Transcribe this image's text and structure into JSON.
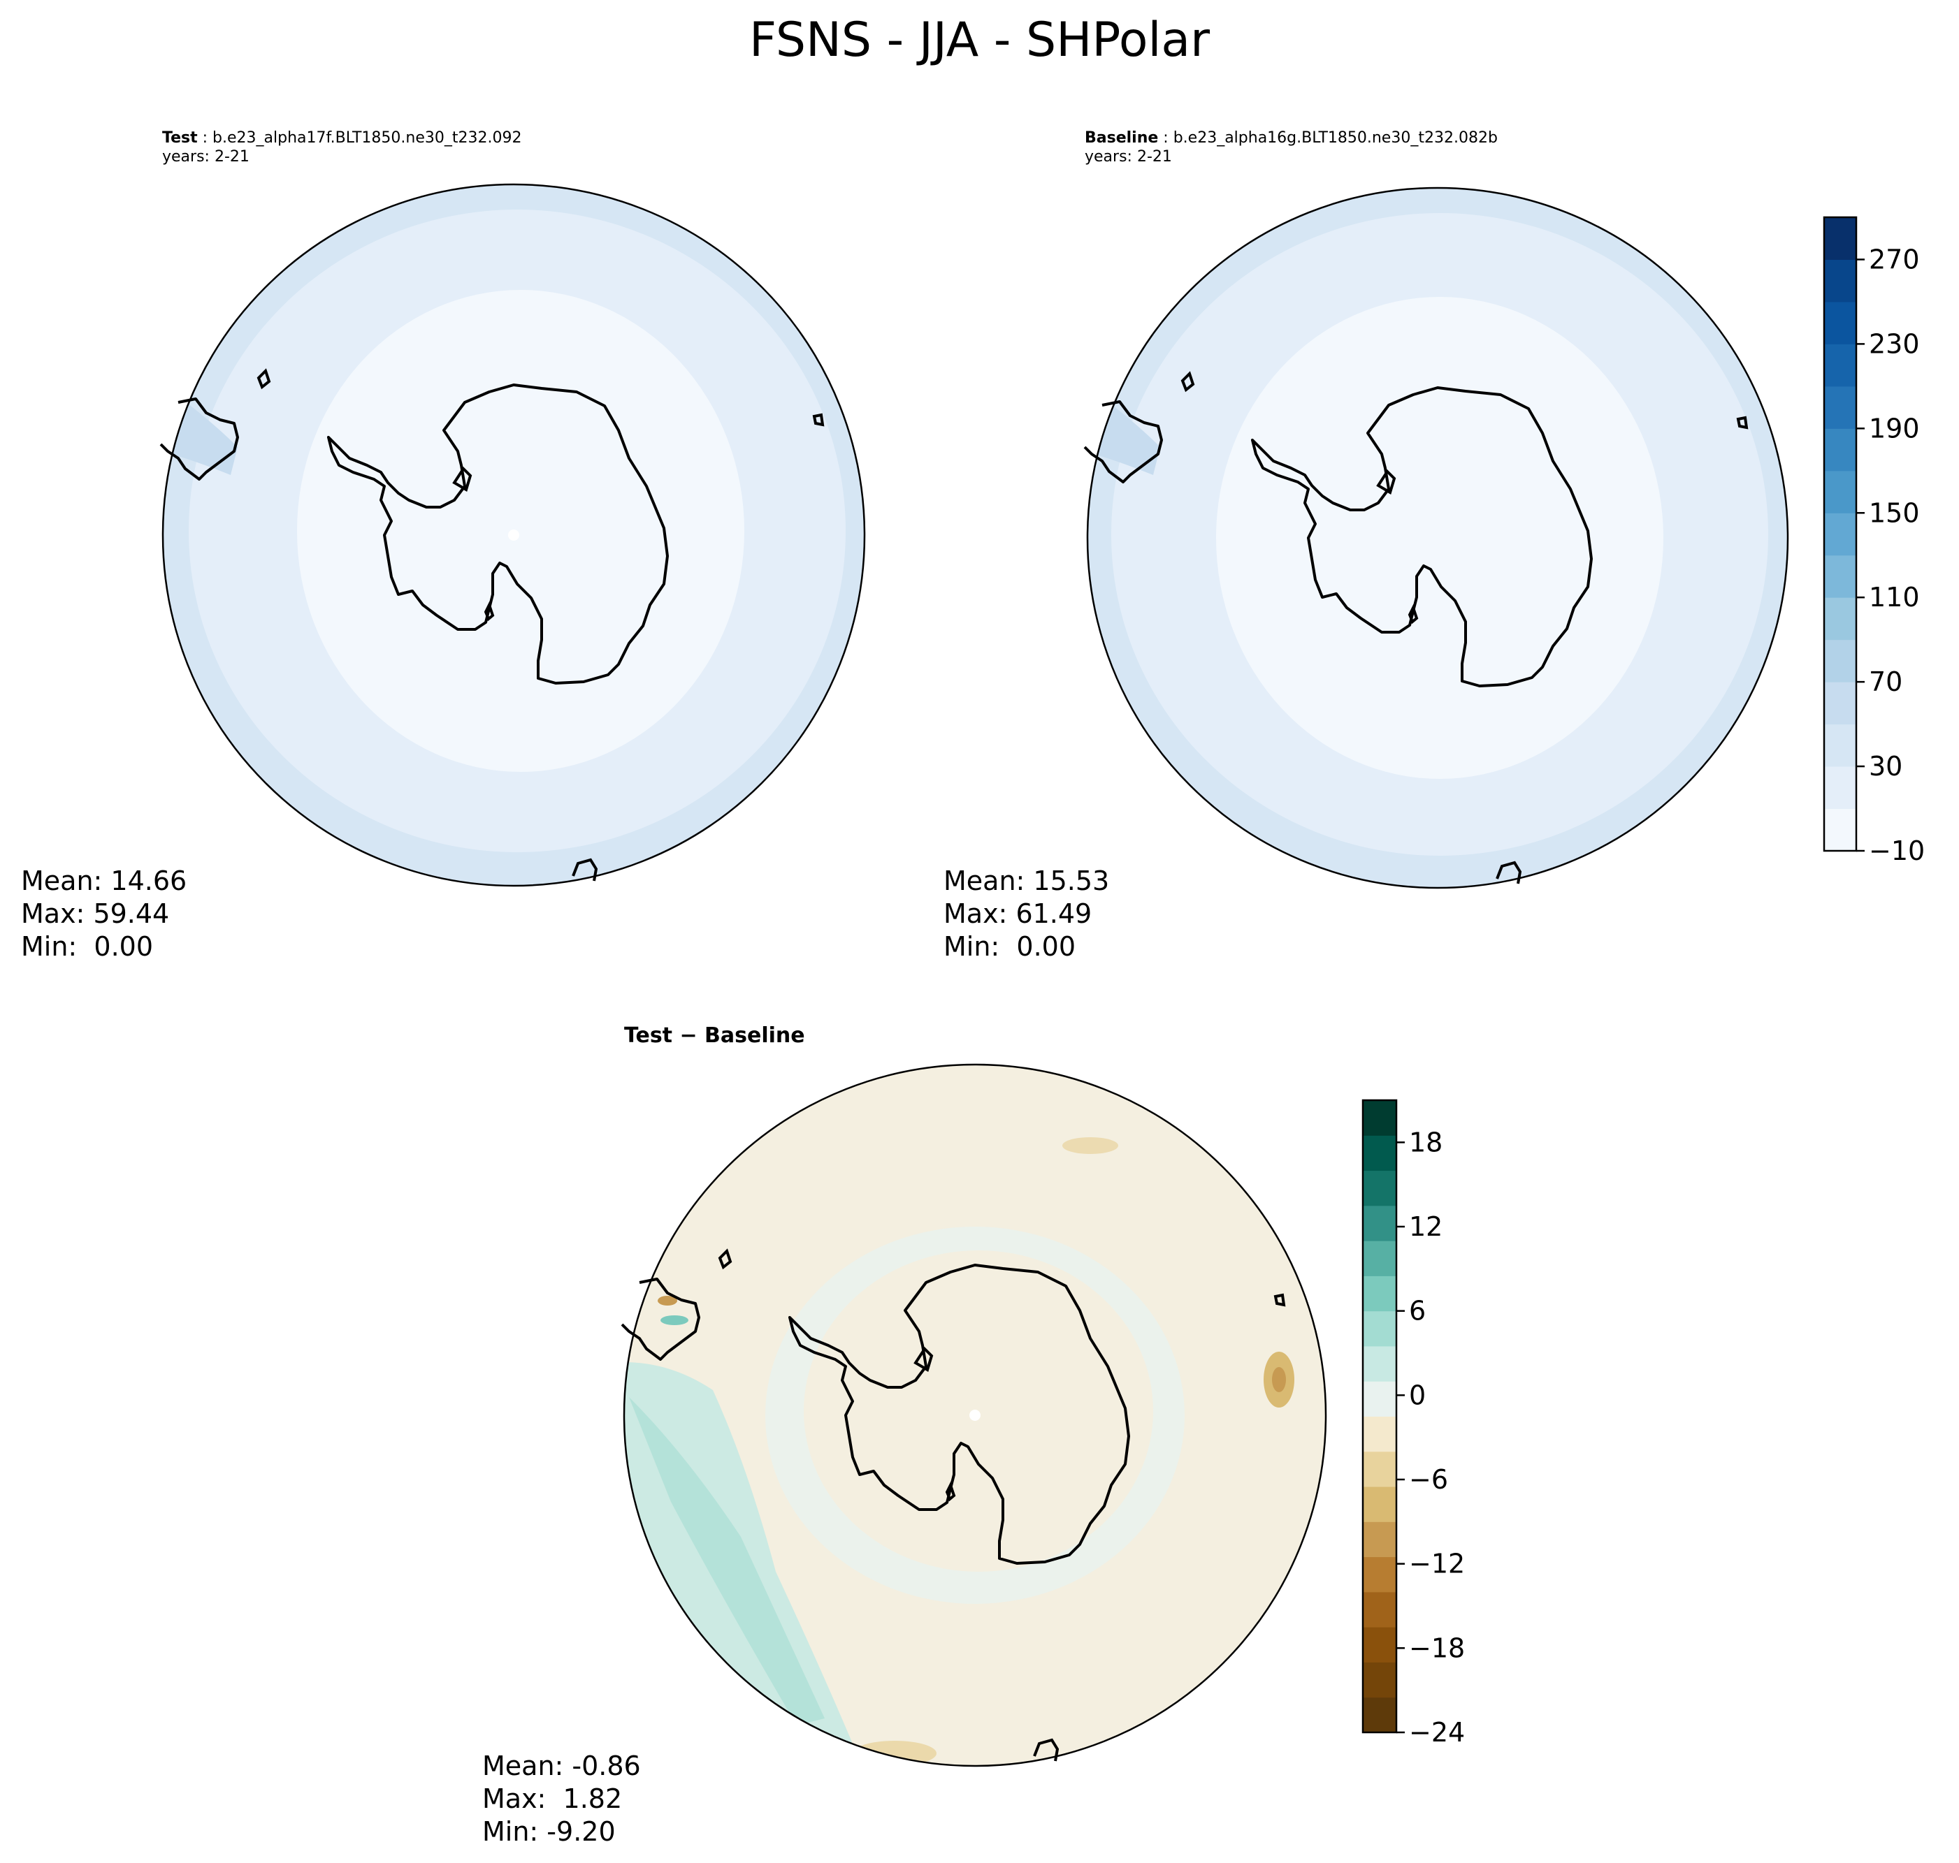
{
  "title": "FSNS - JJA - SHPolar",
  "panels": [
    {
      "label": "Test",
      "case": "b.e23_alpha17f.BLT1850.ne30_t232.092",
      "years": "years: 2-21",
      "stats": {
        "mean": "Mean: 14.66",
        "max": "Max: 59.44",
        "min": "Min:  0.00"
      }
    },
    {
      "label": "Baseline",
      "case": "b.e23_alpha16g.BLT1850.ne30_t232.082b",
      "years": "years: 2-21",
      "stats": {
        "mean": "Mean: 15.53",
        "max": "Max: 61.49",
        "min": "Min:  0.00"
      }
    },
    {
      "label": "Test − Baseline",
      "stats": {
        "mean": "Mean: -0.86",
        "max": "Max:  1.82",
        "min": "Min: -9.20"
      }
    }
  ],
  "chart_data": [
    {
      "type": "contour-map",
      "projection": "south-polar-stereographic",
      "variable": "FSNS",
      "colormap": "Blues",
      "levels": [
        -10,
        10,
        30,
        50,
        70,
        90,
        110,
        130,
        150,
        170,
        190,
        210,
        230,
        250,
        270,
        290
      ],
      "colorbar_ticks": [
        -10,
        30,
        70,
        110,
        150,
        190,
        230,
        270
      ],
      "colorbar_tick_labels": [
        "−10",
        "30",
        "70",
        "110",
        "150",
        "190",
        "230",
        "270"
      ],
      "colorbar_colors": [
        "#f3f8fd",
        "#e4eef9",
        "#d6e6f4",
        "#c7dcef",
        "#b2d2e8",
        "#9ac8e0",
        "#7db8da",
        "#62a8d3",
        "#4a98c9",
        "#3787c0",
        "#2574b6",
        "#1664ab",
        "#0b559f",
        "#08468b",
        "#08306b"
      ]
    },
    {
      "type": "contour-map",
      "projection": "south-polar-stereographic",
      "variable": "FSNS difference",
      "colormap": "BrBG",
      "levels": [
        -24,
        -21,
        -18,
        -15,
        -12,
        -9,
        -6,
        -3,
        0,
        3,
        6,
        9,
        12,
        15,
        18,
        21
      ],
      "colorbar_ticks": [
        -24,
        -18,
        -12,
        -6,
        0,
        6,
        12,
        18
      ],
      "colorbar_tick_labels": [
        "−24",
        "−18",
        "−12",
        "−6",
        "0",
        "6",
        "12",
        "18"
      ],
      "colorbar_colors": [
        "#5e3a0a",
        "#744509",
        "#8a510c",
        "#a0631a",
        "#b77d31",
        "#c79a52",
        "#d9ba72",
        "#e8d39d",
        "#f4e9cd",
        "#e9f2ef",
        "#c8e9e3",
        "#a3dcd2",
        "#7ccabd",
        "#57b0a4",
        "#329187",
        "#147468",
        "#015a4e",
        "#003c30"
      ]
    }
  ]
}
